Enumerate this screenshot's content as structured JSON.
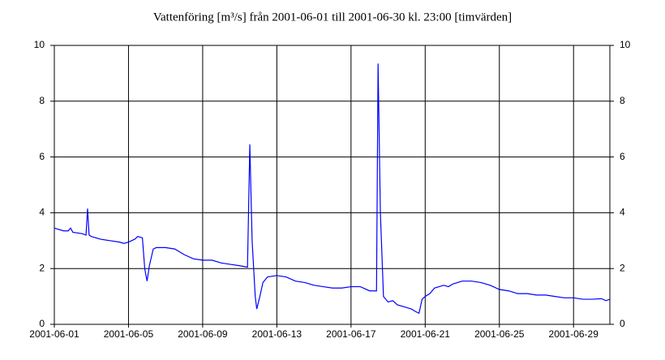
{
  "chart_data": {
    "type": "line",
    "title": "Vattenföring [m³/s] från 2001-06-01 till 2001-06-30 kl. 23:00 [timvärden]",
    "xlim": [
      "2001-06-01 00:00",
      "2001-06-30 23:00"
    ],
    "xticks": [
      "2001-06-01",
      "2001-06-05",
      "2001-06-09",
      "2001-06-13",
      "2001-06-17",
      "2001-06-21",
      "2001-06-25",
      "2001-06-29"
    ],
    "ylim": [
      0,
      10
    ],
    "yticks": [
      0,
      2,
      4,
      6,
      8,
      10
    ],
    "y2lim": [
      0,
      10
    ],
    "y2ticks": [
      0,
      2,
      4,
      6,
      8,
      10
    ],
    "grid": true,
    "series": [
      {
        "color": "#0000ff",
        "x": [
          "2001-06-01 00:00",
          "2001-06-01 12:00",
          "2001-06-01 18:00",
          "2001-06-01 21:00",
          "2001-06-02 00:00",
          "2001-06-02 12:00",
          "2001-06-02 17:00",
          "2001-06-02 19:00",
          "2001-06-02 21:00",
          "2001-06-03 00:00",
          "2001-06-03 12:00",
          "2001-06-04 00:00",
          "2001-06-04 12:00",
          "2001-06-04 18:00",
          "2001-06-05 00:00",
          "2001-06-05 08:00",
          "2001-06-05 12:00",
          "2001-06-05 18:00",
          "2001-06-05 21:00",
          "2001-06-06 00:00",
          "2001-06-06 03:00",
          "2001-06-06 08:00",
          "2001-06-06 12:00",
          "2001-06-07 00:00",
          "2001-06-07 12:00",
          "2001-06-08 00:00",
          "2001-06-08 12:00",
          "2001-06-09 00:00",
          "2001-06-09 12:00",
          "2001-06-10 00:00",
          "2001-06-10 12:00",
          "2001-06-11 00:00",
          "2001-06-11 10:00",
          "2001-06-11 13:00",
          "2001-06-11 16:00",
          "2001-06-11 20:00",
          "2001-06-11 22:00",
          "2001-06-12 02:00",
          "2001-06-12 06:00",
          "2001-06-12 12:00",
          "2001-06-13 00:00",
          "2001-06-13 12:00",
          "2001-06-14 00:00",
          "2001-06-14 12:00",
          "2001-06-15 00:00",
          "2001-06-15 12:00",
          "2001-06-16 00:00",
          "2001-06-16 12:00",
          "2001-06-17 00:00",
          "2001-06-17 12:00",
          "2001-06-18 00:00",
          "2001-06-18 09:00",
          "2001-06-18 11:00",
          "2001-06-18 14:00",
          "2001-06-18 18:00",
          "2001-06-19 00:00",
          "2001-06-19 06:00",
          "2001-06-19 12:00",
          "2001-06-20 00:00",
          "2001-06-20 06:00",
          "2001-06-20 12:00",
          "2001-06-20 16:00",
          "2001-06-20 20:00",
          "2001-06-21 00:00",
          "2001-06-21 06:00",
          "2001-06-21 12:00",
          "2001-06-21 18:00",
          "2001-06-22 00:00",
          "2001-06-22 06:00",
          "2001-06-22 12:00",
          "2001-06-23 00:00",
          "2001-06-23 12:00",
          "2001-06-24 00:00",
          "2001-06-24 12:00",
          "2001-06-25 00:00",
          "2001-06-25 12:00",
          "2001-06-26 00:00",
          "2001-06-26 12:00",
          "2001-06-27 00:00",
          "2001-06-27 12:00",
          "2001-06-28 00:00",
          "2001-06-28 12:00",
          "2001-06-29 00:00",
          "2001-06-29 12:00",
          "2001-06-30 00:00",
          "2001-06-30 12:00",
          "2001-06-30 18:00",
          "2001-06-30 23:00"
        ],
        "values": [
          3.45,
          3.35,
          3.35,
          3.45,
          3.3,
          3.25,
          3.2,
          4.15,
          3.2,
          3.15,
          3.05,
          3.0,
          2.95,
          2.9,
          2.95,
          3.05,
          3.15,
          3.1,
          2.0,
          1.55,
          2.1,
          2.7,
          2.75,
          2.75,
          2.7,
          2.5,
          2.35,
          2.3,
          2.3,
          2.2,
          2.15,
          2.1,
          2.05,
          6.45,
          3.0,
          1.0,
          0.55,
          1.0,
          1.5,
          1.7,
          1.75,
          1.7,
          1.55,
          1.5,
          1.4,
          1.35,
          1.3,
          1.3,
          1.35,
          1.35,
          1.2,
          1.2,
          9.35,
          4.0,
          1.0,
          0.8,
          0.85,
          0.7,
          0.6,
          0.55,
          0.45,
          0.4,
          0.9,
          1.0,
          1.1,
          1.3,
          1.35,
          1.4,
          1.35,
          1.45,
          1.55,
          1.55,
          1.5,
          1.4,
          1.25,
          1.2,
          1.1,
          1.1,
          1.05,
          1.05,
          1.0,
          0.95,
          0.95,
          0.9,
          0.9,
          0.92,
          0.85,
          0.9
        ]
      }
    ]
  }
}
